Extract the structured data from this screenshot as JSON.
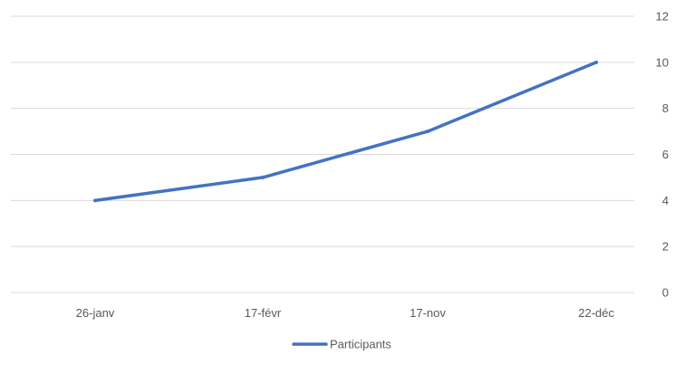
{
  "colors": {
    "series": "#4472C4",
    "grid": "#d9d9d9",
    "text": "#595959"
  },
  "chart_data": {
    "type": "line",
    "categories": [
      "26-janv",
      "17-févr",
      "17-nov",
      "22-déc"
    ],
    "series": [
      {
        "name": "Participants",
        "values": [
          4,
          5,
          7,
          10
        ]
      }
    ],
    "y_ticks": [
      "0",
      "2",
      "4",
      "6",
      "8",
      "10",
      "12"
    ],
    "ylim": [
      0,
      12
    ],
    "y_axis_side": "right",
    "grid": true,
    "legend": "bottom"
  }
}
